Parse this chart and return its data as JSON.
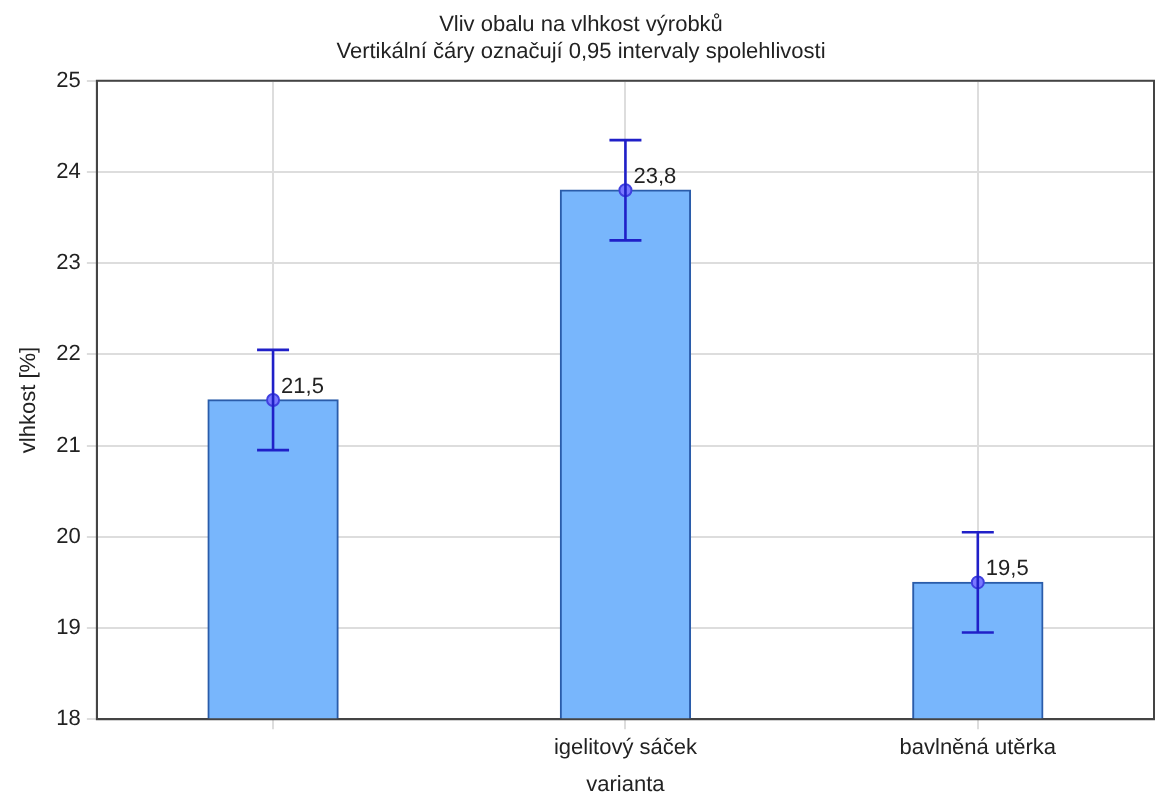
{
  "chart_data": {
    "type": "bar",
    "title": "Vliv obalu na vlhkost výrobků",
    "subtitle": "Vertikální čáry označují 0,95 intervaly spolehlivosti",
    "xlabel": "varianta",
    "ylabel": "vlhkost [%]",
    "categories": [
      null,
      "igelitový sáček",
      "bavlněná utěrka"
    ],
    "series": [
      {
        "color": "#78b6fc",
        "values": [
          21.5,
          23.8,
          19.5
        ],
        "value_labels": [
          "21,5",
          "23,8",
          "19,5"
        ],
        "errors": [
          0.55,
          0.55,
          0.55
        ]
      },
      {
        "type": "scatter",
        "color": "#7878ff",
        "values": [
          21.5,
          23.8,
          19.5
        ],
        "marker": "circle"
      }
    ],
    "ylim": [
      18,
      25
    ],
    "yticks": [
      18,
      19,
      20,
      21,
      22,
      23,
      24,
      25
    ],
    "grid": true,
    "legend": false
  }
}
